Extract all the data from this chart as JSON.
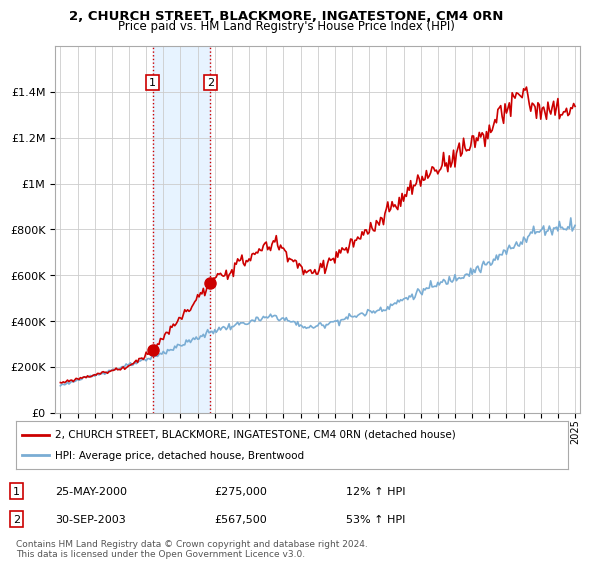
{
  "title": "2, CHURCH STREET, BLACKMORE, INGATESTONE, CM4 0RN",
  "subtitle": "Price paid vs. HM Land Registry's House Price Index (HPI)",
  "ylabel_ticks": [
    0,
    200000,
    400000,
    600000,
    800000,
    1000000,
    1200000,
    1400000
  ],
  "ylabel_labels": [
    "£0",
    "£200K",
    "£400K",
    "£600K",
    "£800K",
    "£1M",
    "£1.2M",
    "£1.4M"
  ],
  "ylim": [
    0,
    1600000
  ],
  "xlim_start": 1994.7,
  "xlim_end": 2025.3,
  "sale1_year": 2000.38,
  "sale1_price": 275000,
  "sale2_year": 2003.75,
  "sale2_price": 567500,
  "legend_line1": "2, CHURCH STREET, BLACKMORE, INGATESTONE, CM4 0RN (detached house)",
  "legend_line2": "HPI: Average price, detached house, Brentwood",
  "table_row1": [
    "1",
    "25-MAY-2000",
    "£275,000",
    "12% ↑ HPI"
  ],
  "table_row2": [
    "2",
    "30-SEP-2003",
    "£567,500",
    "53% ↑ HPI"
  ],
  "footnote1": "Contains HM Land Registry data © Crown copyright and database right 2024.",
  "footnote2": "This data is licensed under the Open Government Licence v3.0.",
  "red_color": "#cc0000",
  "blue_color": "#7aadd4",
  "shade_color": "#ddeeff",
  "grid_color": "#cccccc",
  "bg_color": "#ffffff"
}
